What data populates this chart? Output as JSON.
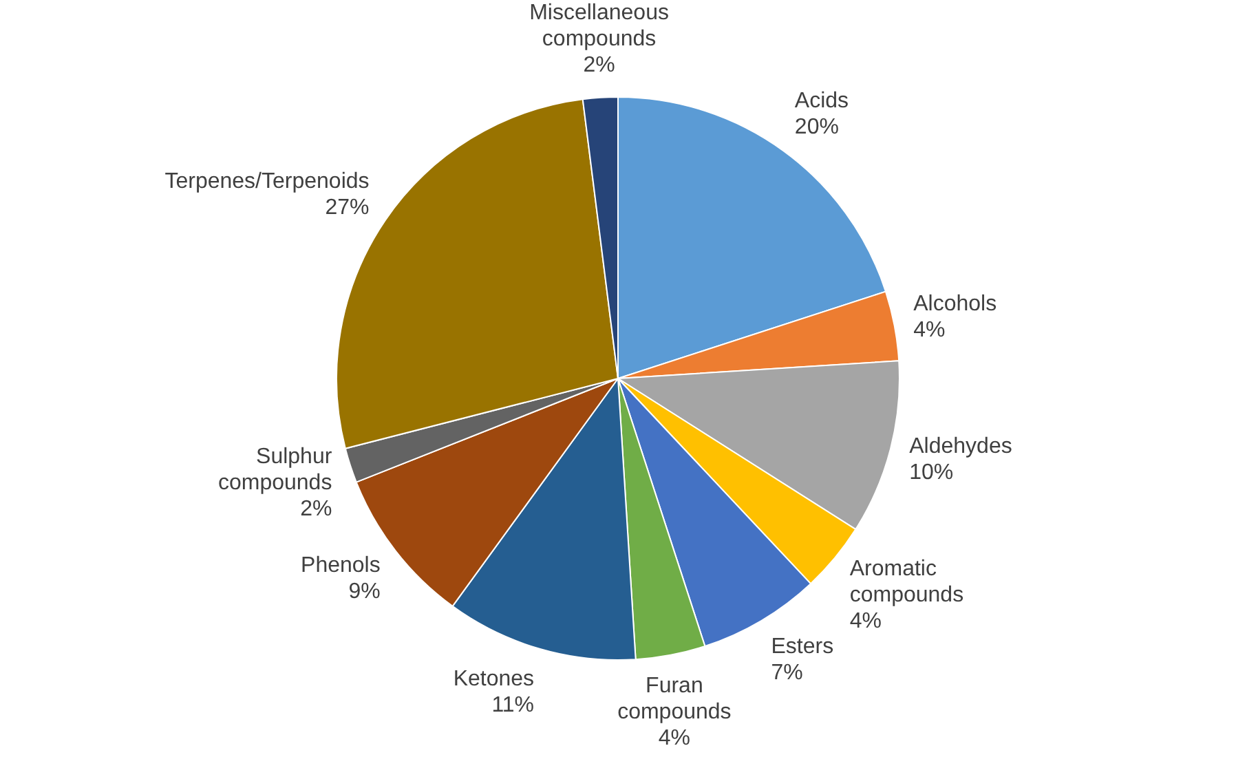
{
  "chart_data": {
    "type": "pie",
    "categories": [
      "Acids",
      "Alcohols",
      "Aldehydes",
      "Aromatic compounds",
      "Esters",
      "Furan compounds",
      "Ketones",
      "Phenols",
      "Sulphur compounds",
      "Terpenes/Terpenoids",
      "Miscellaneous compounds"
    ],
    "values": [
      20,
      4,
      10,
      4,
      7,
      4,
      11,
      9,
      2,
      27,
      2
    ],
    "colors": [
      "#5b9bd5",
      "#ed7d31",
      "#a5a5a5",
      "#ffc000",
      "#4472c4",
      "#70ad47",
      "#255e91",
      "#9e480e",
      "#636363",
      "#997300",
      "#264478"
    ],
    "value_labels": [
      "20%",
      "4%",
      "10%",
      "4%",
      "7%",
      "4%",
      "11%",
      "9%",
      "2%",
      "27%",
      "2%"
    ],
    "legend": false
  }
}
